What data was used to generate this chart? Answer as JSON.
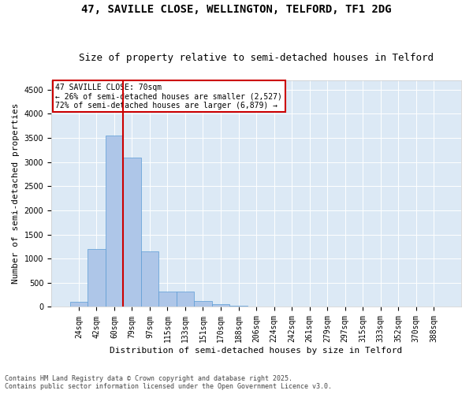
{
  "title1": "47, SAVILLE CLOSE, WELLINGTON, TELFORD, TF1 2DG",
  "title2": "Size of property relative to semi-detached houses in Telford",
  "xlabel": "Distribution of semi-detached houses by size in Telford",
  "ylabel": "Number of semi-detached properties",
  "categories": [
    "24sqm",
    "42sqm",
    "60sqm",
    "79sqm",
    "97sqm",
    "115sqm",
    "133sqm",
    "151sqm",
    "170sqm",
    "188sqm",
    "206sqm",
    "224sqm",
    "242sqm",
    "261sqm",
    "279sqm",
    "297sqm",
    "315sqm",
    "333sqm",
    "352sqm",
    "370sqm",
    "388sqm"
  ],
  "values": [
    100,
    1200,
    3550,
    3100,
    1150,
    310,
    310,
    120,
    60,
    30,
    10,
    0,
    0,
    0,
    0,
    0,
    0,
    0,
    0,
    0,
    0
  ],
  "bar_color": "#aec6e8",
  "bar_edge_color": "#5b9bd5",
  "vline_color": "#cc0000",
  "annotation_box_text": "47 SAVILLE CLOSE: 70sqm\n← 26% of semi-detached houses are smaller (2,527)\n72% of semi-detached houses are larger (6,879) →",
  "annotation_box_color": "#cc0000",
  "ylim": [
    0,
    4700
  ],
  "yticks": [
    0,
    500,
    1000,
    1500,
    2000,
    2500,
    3000,
    3500,
    4000,
    4500
  ],
  "footnote": "Contains HM Land Registry data © Crown copyright and database right 2025.\nContains public sector information licensed under the Open Government Licence v3.0.",
  "bg_color": "#dce9f5",
  "title_fontsize": 10,
  "subtitle_fontsize": 9,
  "axis_label_fontsize": 8,
  "tick_fontsize": 7,
  "annot_fontsize": 7
}
